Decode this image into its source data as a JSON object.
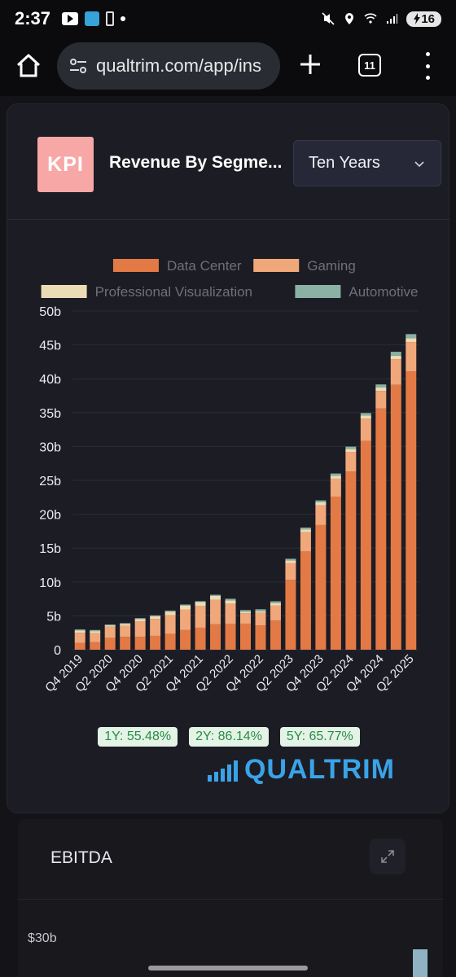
{
  "status_bar": {
    "time": "2:37",
    "battery": "16"
  },
  "browser": {
    "url": "qualtrim.com/app/ins",
    "tab_count": "11"
  },
  "card": {
    "logo_text": "KPI",
    "title": "Revenue By Segme...",
    "range_select": "Ten Years"
  },
  "chart_data": {
    "type": "bar",
    "stacked": true,
    "categories": [
      "Q4 2019",
      "Q1 2020",
      "Q2 2020",
      "Q3 2020",
      "Q4 2020",
      "Q1 2021",
      "Q2 2021",
      "Q3 2021",
      "Q4 2021",
      "Q1 2022",
      "Q2 2022",
      "Q3 2022",
      "Q4 2022",
      "Q1 2023",
      "Q2 2023",
      "Q3 2023",
      "Q4 2023",
      "Q1 2024",
      "Q2 2024",
      "Q3 2024",
      "Q4 2024",
      "Q1 2025",
      "Q2 2025"
    ],
    "tick_labels": [
      "Q4 2019",
      "",
      "Q2 2020",
      "",
      "Q4 2020",
      "",
      "Q2 2021",
      "",
      "Q4 2021",
      "",
      "Q2 2022",
      "",
      "Q4 2022",
      "",
      "Q2 2023",
      "",
      "Q4 2023",
      "",
      "Q2 2024",
      "",
      "Q4 2024",
      "",
      "Q2 2025"
    ],
    "y_ticks": [
      "0",
      "5b",
      "10b",
      "15b",
      "20b",
      "25b",
      "30b",
      "35b",
      "40b",
      "45b",
      "50b"
    ],
    "ylim": [
      0,
      50
    ],
    "grid": true,
    "legend_position": "top",
    "series": [
      {
        "name": "Data Center",
        "color": "#e37a45",
        "values": [
          1.0,
          1.1,
          1.75,
          1.9,
          1.9,
          2.05,
          2.35,
          2.9,
          3.25,
          3.75,
          3.8,
          3.85,
          3.6,
          4.3,
          10.3,
          14.5,
          18.4,
          22.6,
          26.3,
          30.8,
          35.6,
          39.1,
          41.1
        ]
      },
      {
        "name": "Gaming",
        "color": "#f0a77a",
        "values": [
          1.5,
          1.35,
          1.65,
          1.65,
          2.3,
          2.5,
          2.75,
          3.05,
          3.2,
          3.6,
          3.0,
          1.55,
          1.85,
          2.25,
          2.5,
          2.85,
          2.9,
          2.65,
          2.9,
          3.3,
          2.6,
          3.8,
          4.3
        ]
      },
      {
        "name": "Professional Visualization",
        "color": "#ecdcb5",
        "values": [
          0.33,
          0.3,
          0.2,
          0.24,
          0.31,
          0.37,
          0.52,
          0.58,
          0.58,
          0.62,
          0.5,
          0.2,
          0.23,
          0.3,
          0.38,
          0.42,
          0.46,
          0.43,
          0.45,
          0.49,
          0.51,
          0.51,
          0.6
        ]
      },
      {
        "name": "Automotive",
        "color": "#8ab1a4",
        "values": [
          0.16,
          0.16,
          0.11,
          0.13,
          0.15,
          0.15,
          0.15,
          0.14,
          0.13,
          0.14,
          0.22,
          0.25,
          0.29,
          0.3,
          0.25,
          0.26,
          0.28,
          0.33,
          0.33,
          0.35,
          0.45,
          0.57,
          0.59
        ]
      }
    ]
  },
  "growth_badges": [
    "1Y: 55.48%",
    "2Y: 86.14%",
    "5Y: 65.77%"
  ],
  "brand_text": "QUALTRIM",
  "ebitda_card": {
    "title": "EBITDA",
    "tick": "$30b"
  }
}
